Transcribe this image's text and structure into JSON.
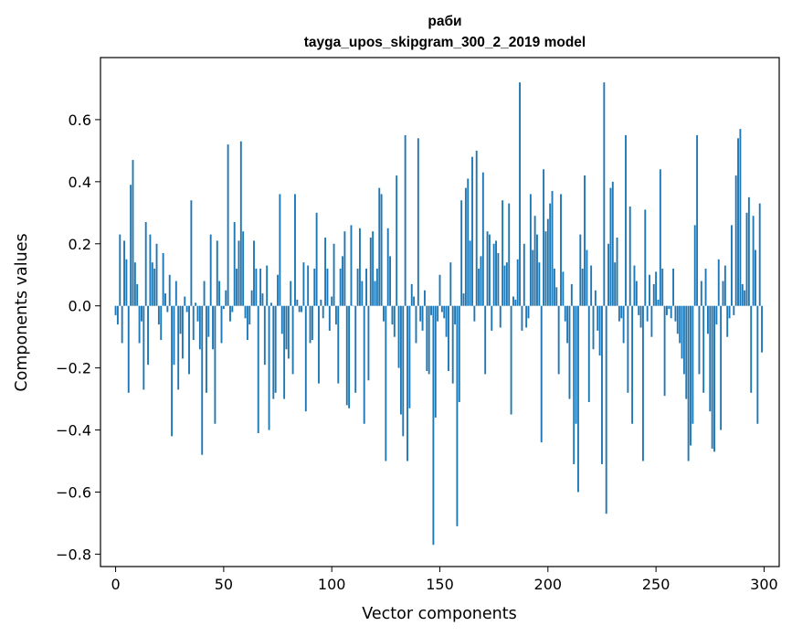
{
  "chart_data": {
    "type": "bar",
    "title": "раби",
    "subtitle": "tayga_upos_skipgram_300_2_2019 model",
    "xlabel": "Vector components",
    "ylabel": "Components values",
    "xlim": [
      -7,
      307
    ],
    "ylim": [
      -0.84,
      0.8
    ],
    "xticks": [
      0,
      50,
      100,
      150,
      200,
      250,
      300
    ],
    "yticks": [
      -0.8,
      -0.6,
      -0.4,
      -0.2,
      0.0,
      0.2,
      0.4,
      0.6
    ],
    "ytick_labels": [
      "−0.8",
      "−0.6",
      "−0.4",
      "−0.2",
      "0.0",
      "0.2",
      "0.4",
      "0.6"
    ],
    "bar_color": "#1f77b4",
    "grid": false,
    "x": "indices 0..299",
    "values": [
      -0.03,
      -0.06,
      0.23,
      -0.12,
      0.21,
      0.15,
      -0.28,
      0.39,
      0.47,
      0.14,
      0.07,
      -0.12,
      -0.05,
      -0.27,
      0.27,
      -0.19,
      0.23,
      0.14,
      0.12,
      0.2,
      -0.06,
      -0.11,
      0.17,
      0.04,
      -0.02,
      0.1,
      -0.42,
      -0.19,
      0.08,
      -0.27,
      -0.09,
      -0.17,
      0.03,
      -0.02,
      -0.22,
      0.34,
      -0.11,
      0.01,
      -0.05,
      -0.14,
      -0.48,
      0.08,
      -0.28,
      -0.1,
      0.23,
      -0.14,
      -0.38,
      0.21,
      0.08,
      -0.12,
      -0.01,
      0.05,
      0.52,
      -0.05,
      -0.02,
      0.27,
      0.12,
      0.21,
      0.53,
      0.24,
      -0.04,
      -0.11,
      -0.06,
      0.05,
      0.21,
      0.12,
      -0.41,
      0.12,
      0.04,
      -0.19,
      0.13,
      -0.4,
      0.01,
      -0.3,
      -0.28,
      0.1,
      0.36,
      -0.09,
      -0.3,
      -0.14,
      -0.17,
      0.08,
      -0.22,
      0.36,
      0.02,
      -0.02,
      -0.02,
      0.14,
      -0.34,
      0.13,
      -0.12,
      -0.11,
      0.12,
      0.3,
      -0.25,
      0.02,
      -0.04,
      0.22,
      0.12,
      -0.08,
      0.03,
      0.2,
      -0.06,
      -0.25,
      0.12,
      0.16,
      0.24,
      -0.32,
      -0.33,
      0.26,
      0.0,
      -0.28,
      0.12,
      0.25,
      0.08,
      -0.38,
      0.12,
      -0.24,
      0.22,
      0.24,
      0.08,
      0.12,
      0.38,
      0.36,
      -0.05,
      -0.5,
      0.25,
      0.16,
      -0.06,
      -0.1,
      0.42,
      -0.2,
      -0.35,
      -0.42,
      0.55,
      -0.5,
      -0.33,
      0.07,
      0.03,
      -0.12,
      0.54,
      -0.05,
      -0.08,
      0.05,
      -0.21,
      -0.22,
      -0.03,
      -0.77,
      -0.36,
      -0.05,
      0.1,
      -0.02,
      -0.04,
      -0.1,
      -0.21,
      0.14,
      -0.25,
      -0.06,
      -0.71,
      -0.31,
      0.34,
      0.04,
      0.38,
      0.41,
      0.21,
      0.48,
      -0.05,
      0.5,
      0.12,
      0.16,
      0.43,
      -0.22,
      0.24,
      0.23,
      -0.08,
      0.2,
      0.21,
      0.17,
      -0.07,
      0.34,
      0.13,
      0.14,
      0.33,
      -0.35,
      0.03,
      0.02,
      0.15,
      0.72,
      -0.08,
      0.2,
      -0.07,
      -0.04,
      0.36,
      0.18,
      0.29,
      0.23,
      0.14,
      -0.44,
      0.44,
      0.24,
      0.28,
      0.33,
      0.37,
      0.12,
      0.06,
      -0.22,
      0.36,
      0.11,
      -0.05,
      -0.12,
      -0.3,
      0.07,
      -0.51,
      -0.38,
      -0.6,
      0.23,
      0.12,
      0.42,
      0.18,
      -0.31,
      0.13,
      -0.14,
      0.05,
      -0.08,
      -0.16,
      -0.51,
      0.72,
      -0.67,
      0.2,
      0.38,
      0.4,
      0.14,
      0.22,
      -0.05,
      -0.04,
      -0.12,
      0.55,
      -0.28,
      0.32,
      -0.38,
      0.13,
      0.08,
      -0.03,
      -0.07,
      -0.5,
      0.31,
      -0.05,
      0.1,
      -0.1,
      0.07,
      0.11,
      0.02,
      0.44,
      0.12,
      -0.29,
      -0.03,
      -0.01,
      -0.04,
      0.12,
      -0.05,
      -0.09,
      -0.12,
      -0.17,
      -0.22,
      -0.3,
      -0.5,
      -0.45,
      -0.38,
      0.26,
      0.55,
      -0.22,
      0.08,
      -0.28,
      0.12,
      -0.09,
      -0.34,
      -0.46,
      -0.47,
      -0.06,
      0.15,
      -0.4,
      0.08,
      0.13,
      -0.1,
      -0.04,
      0.26,
      -0.03,
      0.42,
      0.54,
      0.57,
      0.07,
      0.05,
      0.3,
      0.35,
      -0.28,
      0.29,
      0.18,
      -0.38,
      0.33,
      -0.15
    ]
  }
}
